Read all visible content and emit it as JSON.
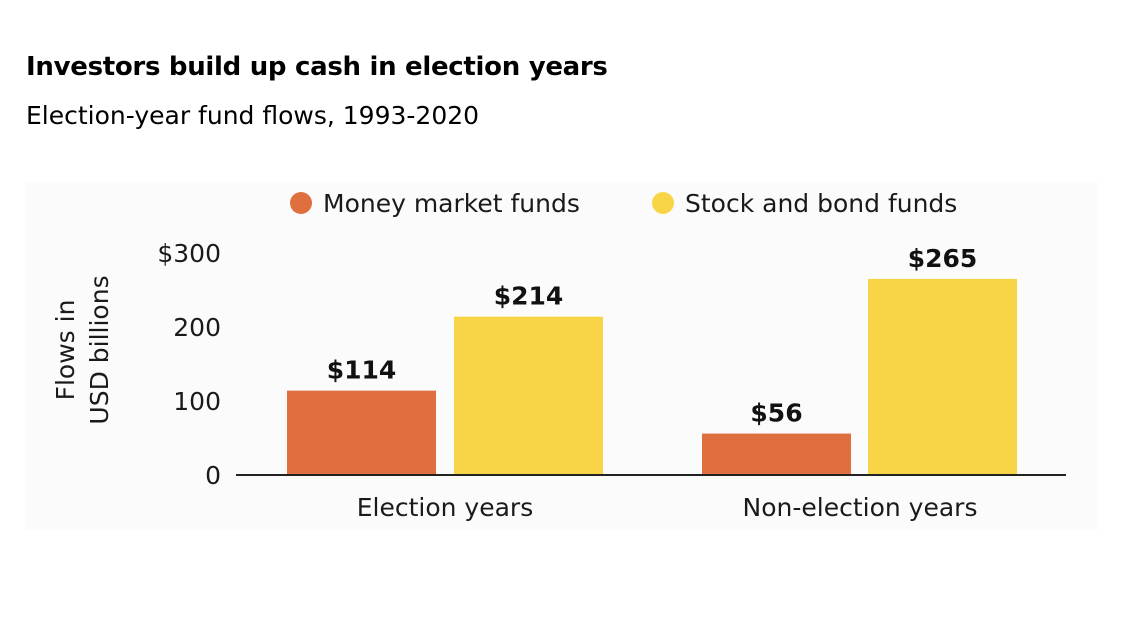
{
  "chart_data": {
    "type": "bar",
    "title": "Investors build up cash in election years",
    "subtitle": "Election-year fund flows, 1993-2020",
    "categories": [
      "Election years",
      "Non-election years"
    ],
    "series": [
      {
        "name": "Money market funds",
        "values": [
          114,
          56
        ],
        "labels": [
          "$114",
          "$56"
        ],
        "color": "#e06f3f"
      },
      {
        "name": "Stock and bond funds",
        "values": [
          214,
          265
        ],
        "labels": [
          "$214",
          "$265"
        ],
        "color": "#f8d547"
      }
    ],
    "ylabel": [
      "Flows in",
      "USD billions"
    ],
    "ylim": [
      0,
      300
    ],
    "yticks": [
      {
        "value": 0,
        "label": "0"
      },
      {
        "value": 100,
        "label": "100"
      },
      {
        "value": 200,
        "label": "200"
      },
      {
        "value": 300,
        "label": "$300"
      }
    ],
    "legend_position": "top"
  }
}
